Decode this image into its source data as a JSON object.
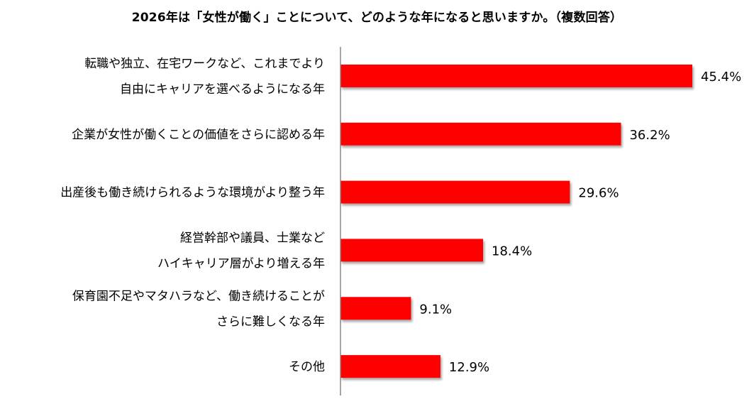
{
  "chart_data": {
    "type": "bar",
    "orientation": "horizontal",
    "title": "2026年は「女性が働く」ことについて、どのような年になると思いますか。（複数回答）",
    "categories": [
      [
        "転職や独立、在宅ワークなど、これまでより",
        "自由にキャリアを選べるようになる年"
      ],
      [
        "企業が女性が働くことの価値をさらに認める年"
      ],
      [
        "出産後も働き続けられるような環境がより整う年"
      ],
      [
        "経営幹部や議員、士業など",
        "ハイキャリア層がより増える年"
      ],
      [
        "保育園不足やマタハラなど、働き続けることが",
        "さらに難しくなる年"
      ],
      [
        "その他"
      ]
    ],
    "values": [
      45.4,
      36.2,
      29.6,
      18.4,
      9.1,
      12.9
    ],
    "value_labels": [
      "45.4%",
      "36.2%",
      "29.6%",
      "18.4%",
      "9.1%",
      "12.9%"
    ],
    "unit": "%",
    "bar_color": "#ff0000",
    "xlim": [
      0,
      45.4
    ],
    "grid": false,
    "legend": "none"
  }
}
